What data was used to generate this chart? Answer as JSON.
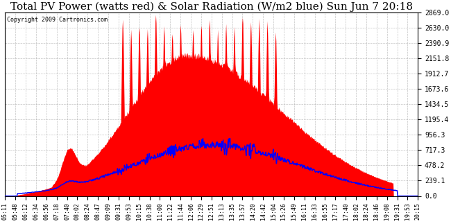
{
  "title": "Total PV Power (watts red) & Solar Radiation (W/m2 blue) Sun Jun 7 20:18",
  "copyright": "Copyright 2009 Cartronics.com",
  "y_ticks": [
    0.0,
    239.1,
    478.2,
    717.3,
    956.3,
    1195.4,
    1434.5,
    1673.6,
    1912.7,
    2151.8,
    2390.9,
    2630.0,
    2869.0
  ],
  "y_max": 2869.0,
  "x_labels": [
    "05:11",
    "05:48",
    "06:12",
    "06:34",
    "06:56",
    "07:18",
    "07:40",
    "08:02",
    "08:24",
    "08:47",
    "09:09",
    "09:31",
    "09:53",
    "10:15",
    "10:38",
    "11:00",
    "11:22",
    "11:44",
    "12:06",
    "12:29",
    "12:51",
    "13:13",
    "13:35",
    "13:57",
    "14:20",
    "14:42",
    "15:04",
    "15:26",
    "15:49",
    "16:11",
    "16:33",
    "16:55",
    "17:17",
    "17:40",
    "18:02",
    "18:24",
    "18:46",
    "19:08",
    "19:31",
    "19:53",
    "20:15"
  ],
  "background_color": "#ffffff",
  "plot_bg_color": "#ffffff",
  "grid_color": "#aaaaaa",
  "pv_color": "#ff0000",
  "solar_color": "#0000ff",
  "title_fontsize": 11,
  "tick_fontsize": 7,
  "copyright_fontsize": 6
}
